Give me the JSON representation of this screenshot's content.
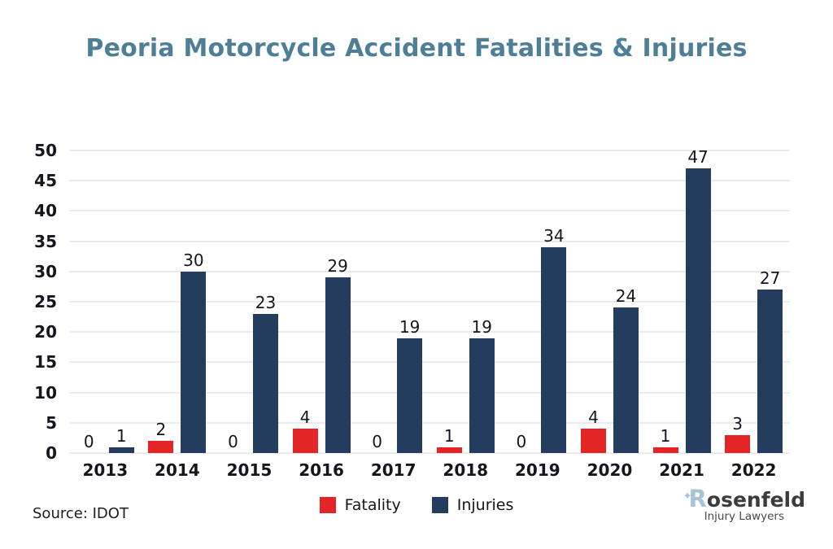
{
  "title": "Peoria  Motorcycle Accident Fatalities & Injuries",
  "source": "Source: IDOT",
  "legend": {
    "fatality": "Fatality",
    "injuries": "Injuries"
  },
  "logo": {
    "brand_first_letter": "R",
    "brand_rest": "osenfeld",
    "tagline": "Injury Lawyers",
    "star": "✦"
  },
  "colors": {
    "title": "#4e7f97",
    "fatality": "#e32526",
    "injuries": "#243d5f",
    "axis_text": "#15151f",
    "gridline": "#ebebeb"
  },
  "chart_data": {
    "type": "bar",
    "title": "Peoria Motorcycle Accident Fatalities & Injuries",
    "categories": [
      "2013",
      "2014",
      "2015",
      "2016",
      "2017",
      "2018",
      "2019",
      "2020",
      "2021",
      "2022"
    ],
    "series": [
      {
        "name": "Fatality",
        "color": "#e32526",
        "values": [
          0,
          2,
          0,
          4,
          0,
          1,
          0,
          4,
          1,
          3
        ]
      },
      {
        "name": "Injuries",
        "color": "#243d5f",
        "values": [
          1,
          30,
          23,
          29,
          19,
          19,
          34,
          24,
          47,
          27
        ]
      }
    ],
    "xlabel": "",
    "ylabel": "",
    "ylim": [
      0,
      50
    ],
    "yticks": [
      0,
      5,
      10,
      15,
      20,
      25,
      30,
      35,
      40,
      45,
      50
    ],
    "grid": true,
    "data_labels": true,
    "legend_position": "bottom",
    "source": "IDOT"
  }
}
